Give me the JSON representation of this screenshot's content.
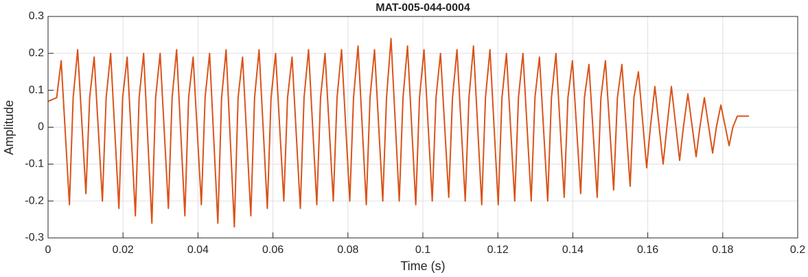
{
  "chart_data": {
    "type": "line",
    "title": "MAT-005-044-0004",
    "xlabel": "Time (s)",
    "ylabel": "Amplitude",
    "xlim": [
      0,
      0.2
    ],
    "xticks": [
      0,
      0.02,
      0.04,
      0.06,
      0.08,
      0.1,
      0.12,
      0.14,
      0.16,
      0.18,
      0.2
    ],
    "ylim": [
      -0.3,
      0.3
    ],
    "yticks": [
      -0.3,
      -0.2,
      -0.1,
      0,
      0.1,
      0.2,
      0.3
    ],
    "grid": true,
    "series": [
      {
        "color": "#d95319",
        "x": [
          0,
          0.0023,
          0.0035,
          0.0057,
          0.0067,
          0.0079,
          0.0101,
          0.0111,
          0.0123,
          0.0145,
          0.0155,
          0.0167,
          0.0189,
          0.0199,
          0.0211,
          0.0233,
          0.0243,
          0.0255,
          0.0277,
          0.0287,
          0.0299,
          0.0321,
          0.0331,
          0.0343,
          0.0365,
          0.0375,
          0.0387,
          0.0409,
          0.0419,
          0.0431,
          0.0453,
          0.0463,
          0.0475,
          0.0497,
          0.0507,
          0.0519,
          0.0541,
          0.0551,
          0.0563,
          0.0585,
          0.0595,
          0.0607,
          0.0629,
          0.0639,
          0.0651,
          0.0673,
          0.0683,
          0.0695,
          0.0717,
          0.0727,
          0.0739,
          0.0761,
          0.0771,
          0.0783,
          0.0805,
          0.0815,
          0.0827,
          0.0849,
          0.0859,
          0.0871,
          0.0893,
          0.0903,
          0.0915,
          0.0937,
          0.0947,
          0.0959,
          0.0981,
          0.0991,
          0.1003,
          0.1025,
          0.1035,
          0.1047,
          0.1069,
          0.1079,
          0.1091,
          0.1113,
          0.1123,
          0.1135,
          0.1157,
          0.1167,
          0.1179,
          0.1201,
          0.1211,
          0.1223,
          0.1245,
          0.1255,
          0.1267,
          0.1289,
          0.1299,
          0.1311,
          0.1333,
          0.1343,
          0.1355,
          0.1377,
          0.1387,
          0.1399,
          0.1421,
          0.1431,
          0.1443,
          0.1465,
          0.1475,
          0.1487,
          0.1509,
          0.1519,
          0.1531,
          0.1553,
          0.1563,
          0.1575,
          0.1597,
          0.1607,
          0.1619,
          0.1641,
          0.1651,
          0.1663,
          0.1685,
          0.1695,
          0.1707,
          0.1729,
          0.1739,
          0.1751,
          0.1773,
          0.1783,
          0.1795,
          0.1817,
          0.1827,
          0.1839,
          0.187
        ],
        "values": [
          0.07,
          0.08,
          0.18,
          -0.21,
          0.08,
          0.21,
          -0.18,
          0.08,
          0.19,
          -0.2,
          0.08,
          0.2,
          -0.22,
          0.08,
          0.19,
          -0.24,
          0.08,
          0.2,
          -0.26,
          0.08,
          0.2,
          -0.22,
          0.08,
          0.21,
          -0.24,
          0.08,
          0.19,
          -0.21,
          0.08,
          0.2,
          -0.26,
          0.08,
          0.21,
          -0.27,
          0.08,
          0.19,
          -0.24,
          0.08,
          0.21,
          -0.22,
          0.08,
          0.2,
          -0.2,
          0.08,
          0.19,
          -0.22,
          0.08,
          0.21,
          -0.21,
          0.08,
          0.2,
          -0.2,
          0.08,
          0.21,
          -0.2,
          0.08,
          0.22,
          -0.21,
          0.08,
          0.21,
          -0.2,
          0.08,
          0.24,
          -0.2,
          0.08,
          0.22,
          -0.21,
          0.08,
          0.21,
          -0.2,
          0.08,
          0.2,
          -0.19,
          0.08,
          0.21,
          -0.2,
          0.08,
          0.22,
          -0.21,
          0.08,
          0.21,
          -0.21,
          0.08,
          0.2,
          -0.2,
          0.08,
          0.2,
          -0.2,
          0.08,
          0.19,
          -0.2,
          0.08,
          0.2,
          -0.19,
          0.08,
          0.18,
          -0.18,
          0.08,
          0.17,
          -0.19,
          0.08,
          0.18,
          -0.17,
          0.08,
          0.17,
          -0.16,
          0.08,
          0.15,
          -0.11,
          0,
          0.11,
          -0.1,
          0,
          0.11,
          -0.09,
          0,
          0.09,
          -0.08,
          0,
          0.08,
          -0.07,
          0,
          0.06,
          -0.05,
          0,
          0.03,
          0.03
        ]
      }
    ]
  }
}
